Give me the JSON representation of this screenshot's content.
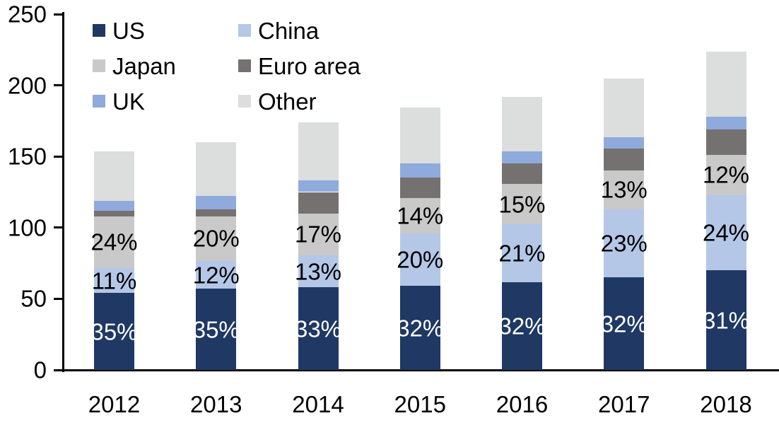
{
  "chart_data": {
    "type": "bar",
    "stacked": true,
    "title": "",
    "xlabel": "",
    "ylabel": "",
    "categories": [
      "2012",
      "2013",
      "2014",
      "2015",
      "2016",
      "2017",
      "2018"
    ],
    "series": [
      {
        "name": "US",
        "color": "#1f3864",
        "label_color": "#ffffff",
        "values": [
          54,
          57,
          58,
          59,
          61.5,
          65,
          70
        ],
        "labels": [
          "35%",
          "35%",
          "33%",
          "32%",
          "32%",
          "32%",
          "31%"
        ]
      },
      {
        "name": "China",
        "color": "#b4c7e7",
        "label_color": "#000000",
        "values": [
          17.5,
          19.5,
          22.5,
          37,
          41,
          48,
          53
        ],
        "labels": [
          "11%",
          "12%",
          "13%",
          "20%",
          "21%",
          "23%",
          "24%"
        ]
      },
      {
        "name": "Japan",
        "color": "#c9c9c9",
        "label_color": "#000000",
        "values": [
          36.5,
          31.5,
          29.5,
          25,
          28,
          27,
          28
        ],
        "labels": [
          "24%",
          "20%",
          "17%",
          "14%",
          "15%",
          "13%",
          "12%"
        ]
      },
      {
        "name": "Euro area",
        "color": "#767171",
        "label_color": null,
        "values": [
          4,
          5,
          15,
          14,
          14.5,
          15.5,
          18
        ],
        "labels": null
      },
      {
        "name": "UK",
        "color": "#8faadc",
        "label_color": null,
        "values": [
          7,
          9.5,
          8,
          10,
          8.5,
          8,
          9
        ],
        "labels": null
      },
      {
        "name": "Other",
        "color": "#dcdddd",
        "label_color": null,
        "values": [
          34.5,
          37.5,
          41,
          39.5,
          38.5,
          41.5,
          45.5
        ],
        "labels": null
      }
    ],
    "totals_estimate": [
      153.5,
      160,
      174,
      184.5,
      192,
      205,
      223.5
    ],
    "ylim": [
      0,
      250
    ],
    "yticks": [
      0,
      50,
      100,
      150,
      200,
      250
    ],
    "grid": false,
    "axis_color": "#000000",
    "legend": {
      "position": "top-left",
      "columns": 2,
      "order": [
        "US",
        "China",
        "Japan",
        "Euro area",
        "UK",
        "Other"
      ]
    }
  }
}
